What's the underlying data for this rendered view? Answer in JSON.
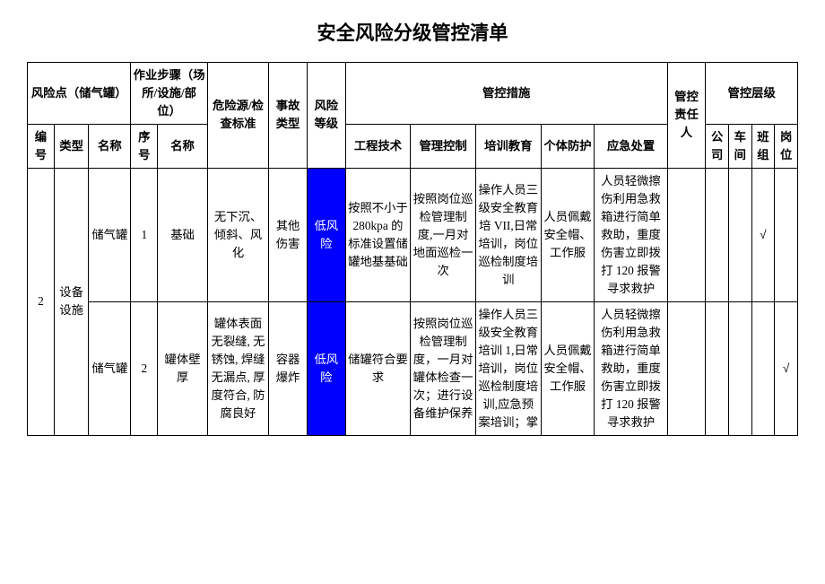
{
  "title": {
    "text": "安全风险分级管控清单",
    "fontsize": 16
  },
  "table": {
    "fontsize": 10,
    "border_color": "#000000",
    "background_color": "#ffffff",
    "risk_level_bg": "#0000ff",
    "risk_level_color": "#ffffff",
    "col_widths_pct": [
      3.5,
      4.5,
      5.5,
      3.5,
      6.5,
      8,
      5,
      5,
      8.5,
      8.5,
      8.5,
      7,
      9.5,
      5,
      3,
      3,
      3,
      3
    ],
    "header": {
      "risk_point": "风险点（储气罐）",
      "work_step": "作业步骤（场所/设施/部位）",
      "hazard_std": "危险源/检查标准",
      "accident_type": "事故类型",
      "risk_level": "风险等级",
      "control_measures": "管控措施",
      "responsible": "管控责任人",
      "control_level": "管控层级",
      "seq": "编号",
      "cat": "类型",
      "name": "名称",
      "step_seq": "序号",
      "step_name": "名称",
      "engineering": "工程技术",
      "management": "管理控制",
      "training": "培训教育",
      "ppe": "个体防护",
      "emergency": "应急处置",
      "company": "公司",
      "workshop": "车间",
      "team": "班组",
      "post": "岗位"
    },
    "group": {
      "seq": "2",
      "cat": "设备设施"
    },
    "rows": [
      {
        "name": "储气罐",
        "step_seq": "1",
        "step_name": "基础",
        "hazard_std": "无下沉、倾斜、风化",
        "accident_type": "其他伤害",
        "risk_level": "低风险",
        "engineering": "按照不小于280kpa 的标准设置储罐地基基础",
        "management": "按照岗位巡检管理制度,一月对地面巡检一次",
        "training": "操作人员三级安全教育培 VII,日常培训，岗位巡检制度培训",
        "ppe": "人员佩戴安全帽、工作服",
        "emergency": "人员轻微擦伤利用急救箱进行简单救助，重度伤害立即拨打 120 报警寻求救护",
        "responsible": "",
        "company": "",
        "workshop": "",
        "team": "√",
        "post": ""
      },
      {
        "name": "储气罐",
        "step_seq": "2",
        "step_name": "罐体壁厚",
        "hazard_std": "罐体表面无裂缝, 无锈蚀, 焊缝无漏点, 厚度符合, 防腐良好",
        "accident_type": "容器爆炸",
        "risk_level": "低风险",
        "engineering": "储罐符合要求",
        "management": "按照岗位巡检管理制度，一月对罐体检查一次；进行设备维护保养",
        "training": "操作人员三级安全教育培训 1,日常培训，岗位巡检制度培训,应急预案培训；掌",
        "ppe": "人员佩戴安全帽、工作服",
        "emergency": "人员轻微擦伤利用急救箱进行简单救助，重度伤害立即拨打 120 报警寻求救护",
        "responsible": "",
        "company": "",
        "workshop": "",
        "team": "",
        "post": "√"
      }
    ]
  }
}
